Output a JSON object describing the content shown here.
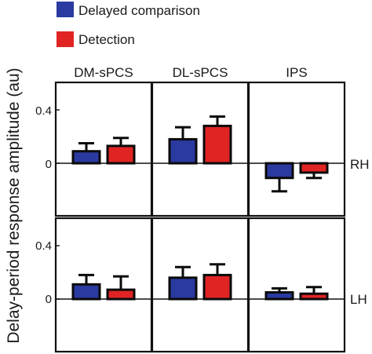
{
  "legend": [
    {
      "label": "Delayed comparison",
      "color": "#2b3aa0"
    },
    {
      "label": "Detection",
      "color": "#e02424"
    }
  ],
  "chart_data": {
    "type": "bar",
    "ylabel": "Delay-period response amplitude (au)",
    "columns": [
      "DM-sPCS",
      "DL-sPCS",
      "IPS"
    ],
    "rows": [
      "RH",
      "LH"
    ],
    "series": [
      {
        "name": "Delayed comparison",
        "color": "#2b3aa0"
      },
      {
        "name": "Detection",
        "color": "#e02424"
      }
    ],
    "yticks": [
      0,
      0.4
    ],
    "ytick_labels": [
      "0",
      "0.4"
    ],
    "grid": false,
    "legend_position": "top-left",
    "panels": [
      {
        "row": "RH",
        "column": "DM-sPCS",
        "values": [
          0.09,
          0.13
        ],
        "errors": [
          0.06,
          0.06
        ]
      },
      {
        "row": "RH",
        "column": "DL-sPCS",
        "values": [
          0.18,
          0.28
        ],
        "errors": [
          0.09,
          0.07
        ]
      },
      {
        "row": "RH",
        "column": "IPS",
        "values": [
          -0.11,
          -0.07
        ],
        "errors": [
          0.1,
          0.04
        ]
      },
      {
        "row": "LH",
        "column": "DM-sPCS",
        "values": [
          0.11,
          0.07
        ],
        "errors": [
          0.07,
          0.1
        ]
      },
      {
        "row": "LH",
        "column": "DL-sPCS",
        "values": [
          0.16,
          0.18
        ],
        "errors": [
          0.08,
          0.08
        ]
      },
      {
        "row": "LH",
        "column": "IPS",
        "values": [
          0.05,
          0.04
        ],
        "errors": [
          0.03,
          0.05
        ]
      }
    ]
  }
}
